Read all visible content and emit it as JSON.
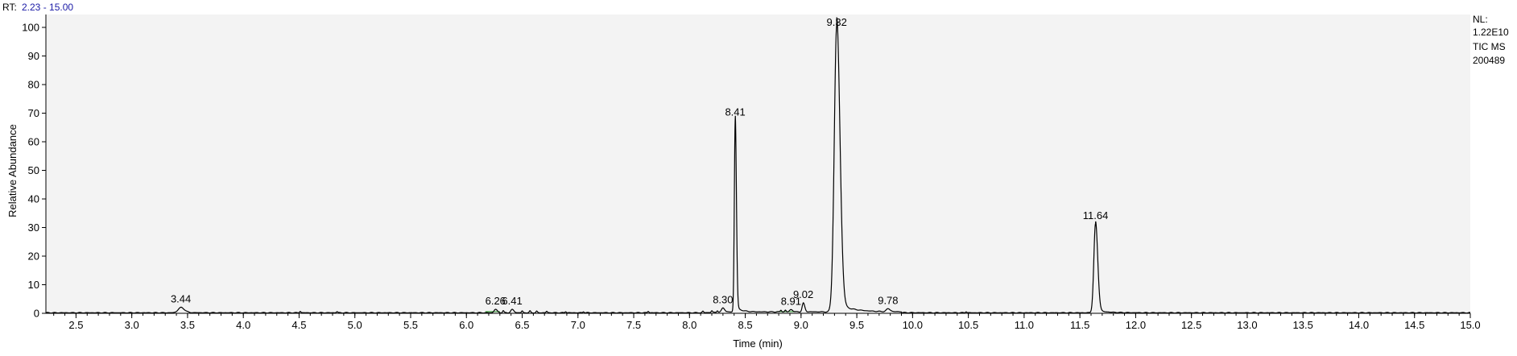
{
  "header": {
    "rt_prefix": "RT:",
    "rt_range": "2.23 - 15.00"
  },
  "info": {
    "lines": [
      "NL:",
      "1.22E10",
      "TIC  MS",
      "200489"
    ]
  },
  "colors": {
    "plot_background": "#f3f3f3",
    "trace": "#000000",
    "baseline_marks": "#2e9e2e",
    "rt_range_text": "#1a1aa6"
  },
  "chart_data": {
    "type": "line",
    "xlabel": "Time (min)",
    "ylabel": "Relative Abundance",
    "xlim": [
      2.23,
      15.0
    ],
    "ylim": [
      0,
      100
    ],
    "x_ticks": [
      2.5,
      3.0,
      3.5,
      4.0,
      4.5,
      5.0,
      5.5,
      6.0,
      6.5,
      7.0,
      7.5,
      8.0,
      8.5,
      9.0,
      9.5,
      10.0,
      10.5,
      11.0,
      11.5,
      12.0,
      12.5,
      13.0,
      13.5,
      14.0,
      14.5,
      15.0
    ],
    "x_tick_labels": [
      "2.5",
      "3.0",
      "3.5",
      "4.0",
      "4.5",
      "5.0",
      "5.5",
      "6.0",
      "6.5",
      "7.0",
      "7.5",
      "8.0",
      "8.5",
      "9.0",
      "9.5",
      "10.0",
      "10.5",
      "11.0",
      "11.5",
      "12.0",
      "12.5",
      "13.0",
      "13.5",
      "14.0",
      "14.5",
      "15.0"
    ],
    "y_ticks": [
      0,
      10,
      20,
      30,
      40,
      50,
      60,
      70,
      80,
      90,
      100
    ],
    "y_tick_labels": [
      "0",
      "10",
      "20",
      "30",
      "40",
      "50",
      "60",
      "70",
      "80",
      "90",
      "100"
    ],
    "grid": false,
    "peaks": [
      {
        "rt": 3.44,
        "label": "3.44",
        "height": 1.8,
        "width": 0.025
      },
      {
        "rt": 6.26,
        "label": "6.26",
        "height": 1.2,
        "width": 0.012
      },
      {
        "rt": 6.41,
        "label": "6.41",
        "height": 1.1,
        "width": 0.012
      },
      {
        "rt": 8.3,
        "label": "8.30",
        "height": 1.5,
        "width": 0.012
      },
      {
        "rt": 8.41,
        "label": "8.41",
        "height": 67,
        "width": 0.008
      },
      {
        "rt": 8.91,
        "label": "8.91",
        "height": 0.8,
        "width": 0.012
      },
      {
        "rt": 9.02,
        "label": "9.02",
        "height": 3,
        "width": 0.01
      },
      {
        "rt": 9.32,
        "label": "9.32",
        "height": 100,
        "width": 0.022
      },
      {
        "rt": 9.78,
        "label": "9.78",
        "height": 1,
        "width": 0.015
      },
      {
        "rt": 11.64,
        "label": "11.64",
        "height": 31,
        "width": 0.015
      }
    ],
    "minor_peaks": [
      {
        "rt": 4.51,
        "height": 0.5
      },
      {
        "rt": 4.84,
        "height": 0.4
      },
      {
        "rt": 6.33,
        "height": 0.7
      },
      {
        "rt": 6.5,
        "height": 0.6
      },
      {
        "rt": 6.57,
        "height": 0.6
      },
      {
        "rt": 6.63,
        "height": 0.5
      },
      {
        "rt": 6.72,
        "height": 0.5
      },
      {
        "rt": 6.89,
        "height": 0.4
      },
      {
        "rt": 7.05,
        "height": 0.4
      },
      {
        "rt": 7.63,
        "height": 0.5
      },
      {
        "rt": 8.12,
        "height": 0.5
      },
      {
        "rt": 8.2,
        "height": 0.6
      },
      {
        "rt": 8.25,
        "height": 0.6
      },
      {
        "rt": 8.82,
        "height": 0.6
      },
      {
        "rt": 8.86,
        "height": 0.6
      },
      {
        "rt": 10.48,
        "height": 0.4
      }
    ]
  }
}
